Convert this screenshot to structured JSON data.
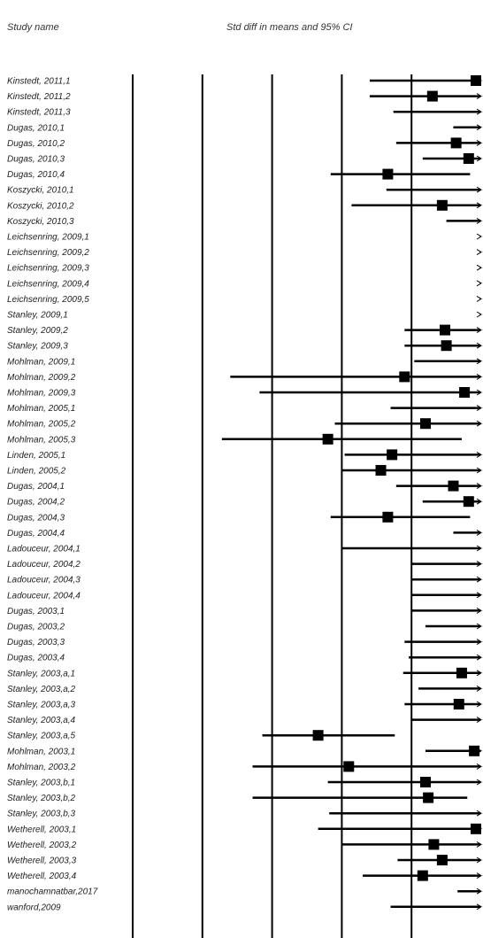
{
  "chart_data": {
    "type": "forest",
    "headers": {
      "study_col": "Study name",
      "plot_col": "Std diff in means and 95% CI"
    },
    "xlim": [
      -1.5,
      1.0
    ],
    "reference_lines": [
      -1,
      -0.5,
      0,
      0.5
    ],
    "studies": [
      {
        "name": "Kinstedt, 2011,1",
        "est": 0.98,
        "lo": 0.2,
        "hi": 1.0
      },
      {
        "name": "Kinstedt, 2011,2",
        "est": 0.65,
        "lo": 0.2,
        "hi": 1.0
      },
      {
        "name": "Kinstedt, 2011,3",
        "est": null,
        "lo": 0.37,
        "hi": 1.0
      },
      {
        "name": "Dugas, 2010,1",
        "est": null,
        "lo": 0.8,
        "hi": 1.0
      },
      {
        "name": "Dugas, 2010,2",
        "est": 0.82,
        "lo": 0.39,
        "hi": 1.0
      },
      {
        "name": "Dugas, 2010,3",
        "est": 0.91,
        "lo": 0.58,
        "hi": 1.0
      },
      {
        "name": "Dugas, 2010,4",
        "est": 0.33,
        "lo": -0.08,
        "hi": 0.92
      },
      {
        "name": "Koszycki, 2010,1",
        "est": null,
        "lo": 0.32,
        "hi": 1.0
      },
      {
        "name": "Koszycki, 2010,2",
        "est": 0.72,
        "lo": 0.07,
        "hi": 1.0
      },
      {
        "name": "Koszycki, 2010,3",
        "est": null,
        "lo": 0.75,
        "hi": 1.0
      },
      {
        "name": "Leichsenring, 2009,1",
        "est": null,
        "lo": 0.99,
        "hi": 1.0
      },
      {
        "name": "Leichsenring, 2009,2",
        "est": null,
        "lo": 0.99,
        "hi": 1.0
      },
      {
        "name": "Leichsenring, 2009,3",
        "est": null,
        "lo": 0.99,
        "hi": 1.0
      },
      {
        "name": "Leichsenring, 2009,4",
        "est": null,
        "lo": 0.99,
        "hi": 1.0
      },
      {
        "name": "Leichsenring, 2009,5",
        "est": null,
        "lo": 0.99,
        "hi": 1.0
      },
      {
        "name": "Stanley, 2009,1",
        "est": null,
        "lo": 0.99,
        "hi": 1.0
      },
      {
        "name": "Stanley, 2009,2",
        "est": 0.74,
        "lo": 0.45,
        "hi": 1.0
      },
      {
        "name": "Stanley, 2009,3",
        "est": 0.75,
        "lo": 0.45,
        "hi": 1.0
      },
      {
        "name": "Mohlman, 2009,1",
        "est": null,
        "lo": 0.52,
        "hi": 1.0
      },
      {
        "name": "Mohlman, 2009,2",
        "est": 0.45,
        "lo": -0.8,
        "hi": 1.0
      },
      {
        "name": "Mohlman, 2009,3",
        "est": 0.88,
        "lo": -0.59,
        "hi": 1.0
      },
      {
        "name": "Mohlman, 2005,1",
        "est": null,
        "lo": 0.35,
        "hi": 1.0
      },
      {
        "name": "Mohlman, 2005,2",
        "est": 0.6,
        "lo": -0.05,
        "hi": 1.0
      },
      {
        "name": "Mohlman, 2005,3",
        "est": -0.1,
        "lo": -0.86,
        "hi": 0.86
      },
      {
        "name": "Linden, 2005,1",
        "est": 0.36,
        "lo": 0.02,
        "hi": 1.0
      },
      {
        "name": "Linden, 2005,2",
        "est": 0.28,
        "lo": 0.0,
        "hi": 1.0
      },
      {
        "name": "Dugas, 2004,1",
        "est": 0.8,
        "lo": 0.39,
        "hi": 1.0
      },
      {
        "name": "Dugas, 2004,2",
        "est": 0.91,
        "lo": 0.58,
        "hi": 1.0
      },
      {
        "name": "Dugas, 2004,3",
        "est": 0.33,
        "lo": -0.08,
        "hi": 0.92
      },
      {
        "name": "Dugas, 2004,4",
        "est": null,
        "lo": 0.8,
        "hi": 1.0
      },
      {
        "name": "Ladouceur, 2004,1",
        "est": null,
        "lo": 0.0,
        "hi": 1.0
      },
      {
        "name": "Ladouceur, 2004,2",
        "est": null,
        "lo": 0.5,
        "hi": 1.0
      },
      {
        "name": "Ladouceur, 2004,3",
        "est": null,
        "lo": 0.5,
        "hi": 1.0
      },
      {
        "name": "Ladouceur, 2004,4",
        "est": null,
        "lo": 0.5,
        "hi": 1.0
      },
      {
        "name": "Dugas, 2003,1",
        "est": null,
        "lo": 0.5,
        "hi": 1.0
      },
      {
        "name": "Dugas, 2003,2",
        "est": null,
        "lo": 0.6,
        "hi": 1.0
      },
      {
        "name": "Dugas, 2003,3",
        "est": null,
        "lo": 0.45,
        "hi": 1.0
      },
      {
        "name": "Dugas, 2003,4",
        "est": null,
        "lo": 0.48,
        "hi": 1.0
      },
      {
        "name": "Stanley, 2003,a,1",
        "est": 0.86,
        "lo": 0.44,
        "hi": 1.0
      },
      {
        "name": "Stanley, 2003,a,2",
        "est": null,
        "lo": 0.55,
        "hi": 1.0
      },
      {
        "name": "Stanley, 2003,a,3",
        "est": 0.84,
        "lo": 0.45,
        "hi": 1.0
      },
      {
        "name": "Stanley, 2003,a,4",
        "est": null,
        "lo": 0.5,
        "hi": 1.0
      },
      {
        "name": "Stanley, 2003,a,5",
        "est": -0.17,
        "lo": -0.57,
        "hi": 0.38
      },
      {
        "name": "Mohlman, 2003,1",
        "est": 0.95,
        "lo": 0.6,
        "hi": 1.0
      },
      {
        "name": "Mohlman, 2003,2",
        "est": 0.05,
        "lo": -0.64,
        "hi": 1.0
      },
      {
        "name": "Stanley, 2003,b,1",
        "est": 0.6,
        "lo": -0.1,
        "hi": 1.0
      },
      {
        "name": "Stanley, 2003,b,2",
        "est": 0.62,
        "lo": -0.64,
        "hi": 0.9
      },
      {
        "name": "Stanley, 2003,b,3",
        "est": null,
        "lo": -0.09,
        "hi": 1.0
      },
      {
        "name": "Wetherell, 2003,1",
        "est": 0.99,
        "lo": -0.17,
        "hi": 1.0
      },
      {
        "name": "Wetherell, 2003,2",
        "est": 0.66,
        "lo": 0.0,
        "hi": 1.0
      },
      {
        "name": "Wetherell, 2003,3",
        "est": 0.72,
        "lo": 0.4,
        "hi": 1.0
      },
      {
        "name": "Wetherell, 2003,4",
        "est": 0.58,
        "lo": 0.15,
        "hi": 1.0
      },
      {
        "name": "manochamnatbar,2017",
        "est": null,
        "lo": 0.83,
        "hi": 1.0
      },
      {
        "name": "wanford,2009",
        "est": null,
        "lo": 0.35,
        "hi": 1.0
      }
    ]
  }
}
